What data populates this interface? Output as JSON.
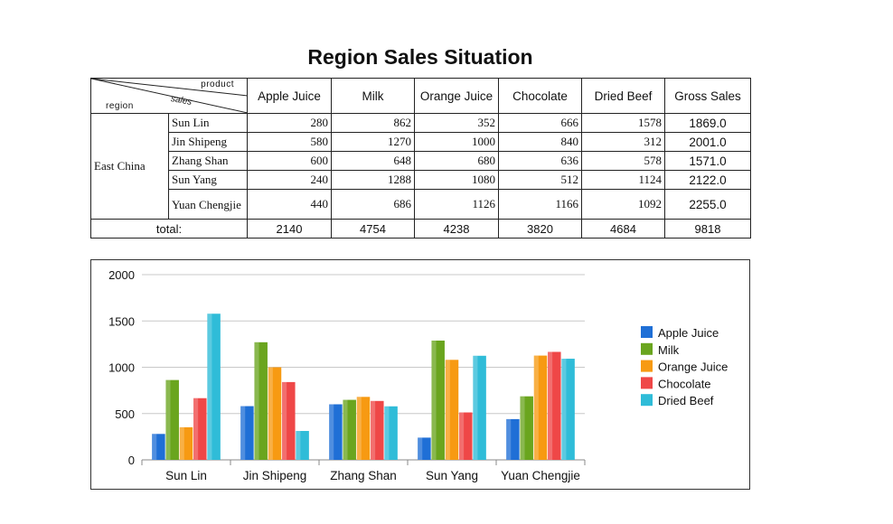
{
  "title": "Region Sales Situation",
  "table": {
    "corner": {
      "product": "product",
      "sales": "sales",
      "region": "region"
    },
    "columns": [
      "Apple Juice",
      "Milk",
      "Orange Juice",
      "Chocolate",
      "Dried Beef",
      "Gross Sales"
    ],
    "region": "East China",
    "rows": [
      {
        "name": "Sun Lin",
        "values": [
          "280",
          "862",
          "352",
          "666",
          "1578"
        ],
        "gross": "1869.0"
      },
      {
        "name": "Jin Shipeng",
        "values": [
          "580",
          "1270",
          "1000",
          "840",
          "312"
        ],
        "gross": "2001.0"
      },
      {
        "name": "Zhang Shan",
        "values": [
          "600",
          "648",
          "680",
          "636",
          "578"
        ],
        "gross": "1571.0"
      },
      {
        "name": "Sun Yang",
        "values": [
          "240",
          "1288",
          "1080",
          "512",
          "1124"
        ],
        "gross": "2122.0"
      },
      {
        "name": "Yuan Chengjie",
        "values": [
          "440",
          "686",
          "1126",
          "1166",
          "1092"
        ],
        "gross": "2255.0"
      }
    ],
    "total_label": "total:",
    "totals": [
      "2140",
      "4754",
      "4238",
      "3820",
      "4684",
      "9818"
    ]
  },
  "chart_data": {
    "type": "bar",
    "title": "",
    "xlabel": "",
    "ylabel": "",
    "ylim": [
      0,
      2000
    ],
    "yticks": [
      0,
      500,
      1000,
      1500,
      2000
    ],
    "grid": true,
    "legend_position": "right",
    "categories": [
      "Sun Lin",
      "Jin Shipeng",
      "Zhang Shan",
      "Sun Yang",
      "Yuan Chengjie"
    ],
    "series": [
      {
        "name": "Apple Juice",
        "color": "#1f6fd6",
        "values": [
          280,
          580,
          600,
          240,
          440
        ]
      },
      {
        "name": "Milk",
        "color": "#6aa51e",
        "values": [
          862,
          1270,
          648,
          1288,
          686
        ]
      },
      {
        "name": "Orange Juice",
        "color": "#f79a12",
        "values": [
          352,
          1000,
          680,
          1080,
          1126
        ]
      },
      {
        "name": "Chocolate",
        "color": "#ef4747",
        "values": [
          666,
          840,
          636,
          512,
          1166
        ]
      },
      {
        "name": "Dried Beef",
        "color": "#2fbcd8",
        "values": [
          1578,
          312,
          578,
          1124,
          1092
        ]
      }
    ]
  }
}
